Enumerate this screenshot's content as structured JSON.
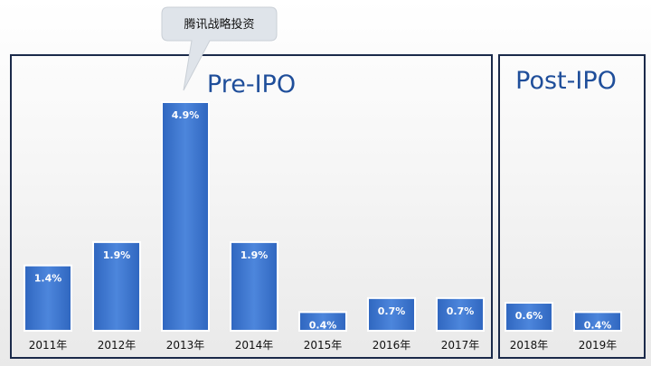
{
  "chart_data": {
    "type": "bar",
    "panels": [
      {
        "title": "Pre-IPO",
        "categories": [
          "2011年",
          "2012年",
          "2013年",
          "2014年",
          "2015年",
          "2016年",
          "2017年"
        ]
      },
      {
        "title": "Post-IPO",
        "categories": [
          "2018年",
          "2019年"
        ]
      }
    ],
    "categories": [
      "2011年",
      "2012年",
      "2013年",
      "2014年",
      "2015年",
      "2016年",
      "2017年",
      "2018年",
      "2019年"
    ],
    "values": [
      1.4,
      1.9,
      4.9,
      1.9,
      0.4,
      0.7,
      0.7,
      0.6,
      0.4
    ],
    "value_labels": [
      "1.4%",
      "1.9%",
      "4.9%",
      "1.9%",
      "0.4%",
      "0.7%",
      "0.7%",
      "0.6%",
      "0.4%"
    ],
    "annotation": {
      "text": "腾讯战略投资",
      "category": "2013年"
    },
    "ylim": [
      0,
      5.2
    ],
    "grid": false,
    "colors": {
      "bar": "#2f66bf",
      "bar_highlight": "#4d86dc",
      "panel_border": "#1b2a4a",
      "title": "#1f4e9a",
      "callout": "#dfe4ea"
    }
  }
}
